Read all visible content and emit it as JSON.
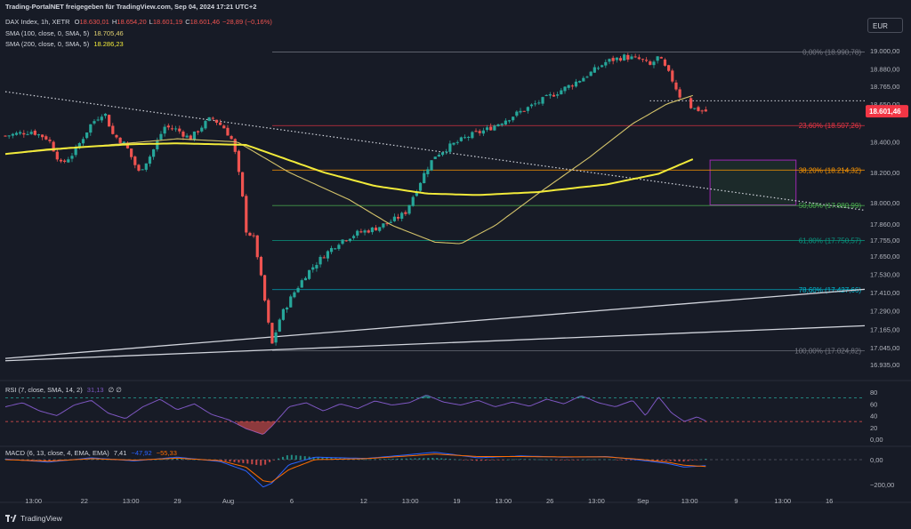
{
  "header": {
    "title": "Trading-PortalNET freigegeben für TradingView.com, Sep 04, 2024 17:21 UTC+2",
    "symbol": "DAX Index, 1h, XETR",
    "ohlc": [
      {
        "k": "O",
        "v": "18.630,01"
      },
      {
        "k": "H",
        "v": "18.654,20"
      },
      {
        "k": "L",
        "v": "18.601,19"
      },
      {
        "k": "C",
        "v": "18.601,46"
      },
      {
        "k": "",
        "v": "−28,89 (−0,16%)"
      }
    ],
    "sma100_label": "SMA (100, close, 0, SMA, 5)",
    "sma100_value": "18.705,46",
    "sma200_label": "SMA (200, close, 0, SMA, 5)",
    "sma200_value": "18.286,23"
  },
  "currency": "EUR",
  "logo": "TradingView",
  "colors": {
    "background": "#171b26",
    "up": "#26a69a",
    "down": "#ef5350",
    "sma100": "#d4c36a",
    "sma200": "#f1ea3a",
    "rsi": "#7e57c2",
    "macd": "#2962ff",
    "signal": "#ff6d00",
    "price_badge": "#f23645"
  },
  "chart_data": {
    "type": "candlestick",
    "x_labels": [
      "13:00",
      "22",
      "13:00",
      "29",
      "Aug",
      "6",
      "12",
      "13:00",
      "19",
      "13:00",
      "26",
      "13:00",
      "Sep",
      "13:00",
      "9",
      "13:00",
      "16"
    ],
    "y_ticks": [
      "19.000,00",
      "18.880,00",
      "18.765,00",
      "18.650,00",
      "18.400,00",
      "18.200,00",
      "18.000,00",
      "17.860,00",
      "17.755,00",
      "17.650,00",
      "17.530,00",
      "17.410,00",
      "17.290,00",
      "17.165,00",
      "17.045,00",
      "16.935,00"
    ],
    "y_tick_values": [
      19000,
      18880,
      18765,
      18650,
      18400,
      18200,
      18000,
      17860,
      17755,
      17650,
      17530,
      17410,
      17290,
      17165,
      17045,
      16935
    ],
    "last_price": "18.601,46",
    "last_price_value": 18601.46,
    "close_path": [
      [
        0,
        18440
      ],
      [
        0.03,
        18470
      ],
      [
        0.05,
        18420
      ],
      [
        0.065,
        18250
      ],
      [
        0.08,
        18330
      ],
      [
        0.1,
        18520
      ],
      [
        0.115,
        18600
      ],
      [
        0.125,
        18450
      ],
      [
        0.14,
        18380
      ],
      [
        0.155,
        18200
      ],
      [
        0.17,
        18320
      ],
      [
        0.185,
        18500
      ],
      [
        0.2,
        18480
      ],
      [
        0.215,
        18420
      ],
      [
        0.23,
        18510
      ],
      [
        0.24,
        18560
      ],
      [
        0.255,
        18490
      ],
      [
        0.265,
        18400
      ],
      [
        0.275,
        18080
      ],
      [
        0.28,
        17820
      ],
      [
        0.29,
        17760
      ],
      [
        0.3,
        17420
      ],
      [
        0.31,
        17060
      ],
      [
        0.32,
        17250
      ],
      [
        0.335,
        17400
      ],
      [
        0.35,
        17530
      ],
      [
        0.37,
        17650
      ],
      [
        0.39,
        17750
      ],
      [
        0.41,
        17800
      ],
      [
        0.43,
        17830
      ],
      [
        0.45,
        17880
      ],
      [
        0.465,
        17930
      ],
      [
        0.475,
        18050
      ],
      [
        0.49,
        18220
      ],
      [
        0.5,
        18310
      ],
      [
        0.52,
        18380
      ],
      [
        0.54,
        18440
      ],
      [
        0.56,
        18480
      ],
      [
        0.58,
        18540
      ],
      [
        0.6,
        18600
      ],
      [
        0.62,
        18660
      ],
      [
        0.64,
        18720
      ],
      [
        0.66,
        18780
      ],
      [
        0.68,
        18850
      ],
      [
        0.7,
        18930
      ],
      [
        0.72,
        18960
      ],
      [
        0.74,
        18940
      ],
      [
        0.75,
        18900
      ],
      [
        0.76,
        18960
      ],
      [
        0.775,
        18820
      ],
      [
        0.785,
        18700
      ],
      [
        0.8,
        18620
      ],
      [
        0.815,
        18601
      ]
    ],
    "sma100_path": [
      [
        0,
        18320
      ],
      [
        0.1,
        18370
      ],
      [
        0.2,
        18420
      ],
      [
        0.27,
        18400
      ],
      [
        0.33,
        18200
      ],
      [
        0.4,
        18020
      ],
      [
        0.45,
        17850
      ],
      [
        0.5,
        17740
      ],
      [
        0.53,
        17730
      ],
      [
        0.57,
        17850
      ],
      [
        0.62,
        18060
      ],
      [
        0.68,
        18300
      ],
      [
        0.73,
        18520
      ],
      [
        0.77,
        18650
      ],
      [
        0.8,
        18705
      ]
    ],
    "sma200_path": [
      [
        0,
        18320
      ],
      [
        0.05,
        18350
      ],
      [
        0.1,
        18370
      ],
      [
        0.15,
        18385
      ],
      [
        0.2,
        18390
      ],
      [
        0.28,
        18380
      ],
      [
        0.32,
        18300
      ],
      [
        0.37,
        18200
      ],
      [
        0.43,
        18110
      ],
      [
        0.49,
        18060
      ],
      [
        0.55,
        18050
      ],
      [
        0.62,
        18070
      ],
      [
        0.7,
        18120
      ],
      [
        0.76,
        18190
      ],
      [
        0.8,
        18286
      ]
    ],
    "fib_levels": [
      {
        "label": "0,00% (18.990,78)",
        "value": 18990.78,
        "color": "#787b86"
      },
      {
        "label": "23,60% (18.507,26)",
        "value": 18507.26,
        "color": "#f23645"
      },
      {
        "label": "38,20% (18.214,32)",
        "value": 18214.32,
        "color": "#ff9800"
      },
      {
        "label": "50,00% (17.980,99)",
        "value": 17980.99,
        "color": "#4caf50"
      },
      {
        "label": "61,80% (17.750,57)",
        "value": 17750.57,
        "color": "#089981"
      },
      {
        "label": "78,60% (17.427,66)",
        "value": 17427.66,
        "color": "#00bcd4"
      },
      {
        "label": "100,00% (17.024,82)",
        "value": 17024.82,
        "color": "#787b86"
      }
    ],
    "zone": {
      "x_start": 0.82,
      "x_end": 0.92,
      "y_top": 18280,
      "y_bottom": 17985
    },
    "trendlines": [
      {
        "from": [
          0,
          18730
        ],
        "to": [
          1,
          17950
        ],
        "style": "dotted"
      },
      {
        "from": [
          0,
          16975
        ],
        "to": [
          1,
          17430
        ],
        "style": "solid"
      },
      {
        "from": [
          0,
          16960
        ],
        "to": [
          1,
          17190
        ],
        "style": "solid"
      }
    ],
    "resistance_dotted": {
      "value": 18670
    },
    "rsi": {
      "label": "RSI (7, close, SMA, 14, 2)",
      "value": "31,13",
      "extra": "∅ ∅",
      "ticks": [
        "80",
        "60",
        "40",
        "20",
        "0,00"
      ],
      "tick_values": [
        80,
        60,
        40,
        20,
        0
      ],
      "bands": [
        70,
        30
      ],
      "path": [
        [
          0,
          55
        ],
        [
          0.02,
          62
        ],
        [
          0.04,
          48
        ],
        [
          0.06,
          40
        ],
        [
          0.08,
          58
        ],
        [
          0.1,
          66
        ],
        [
          0.12,
          44
        ],
        [
          0.14,
          35
        ],
        [
          0.16,
          55
        ],
        [
          0.18,
          68
        ],
        [
          0.2,
          50
        ],
        [
          0.22,
          60
        ],
        [
          0.24,
          42
        ],
        [
          0.26,
          33
        ],
        [
          0.28,
          18
        ],
        [
          0.3,
          8
        ],
        [
          0.31,
          22
        ],
        [
          0.33,
          55
        ],
        [
          0.35,
          62
        ],
        [
          0.37,
          48
        ],
        [
          0.39,
          60
        ],
        [
          0.41,
          52
        ],
        [
          0.43,
          65
        ],
        [
          0.45,
          58
        ],
        [
          0.47,
          62
        ],
        [
          0.49,
          75
        ],
        [
          0.51,
          63
        ],
        [
          0.53,
          58
        ],
        [
          0.55,
          66
        ],
        [
          0.57,
          55
        ],
        [
          0.59,
          63
        ],
        [
          0.61,
          56
        ],
        [
          0.63,
          68
        ],
        [
          0.65,
          60
        ],
        [
          0.67,
          74
        ],
        [
          0.69,
          62
        ],
        [
          0.71,
          55
        ],
        [
          0.73,
          66
        ],
        [
          0.745,
          40
        ],
        [
          0.76,
          72
        ],
        [
          0.775,
          45
        ],
        [
          0.79,
          30
        ],
        [
          0.805,
          38
        ],
        [
          0.815,
          31
        ]
      ]
    },
    "macd": {
      "label": "MACD (6, 13, close, 4, EMA, EMA)",
      "values": [
        "7,41",
        "−47,92",
        "−55,33"
      ],
      "ticks": [
        "0,00",
        "−200,00"
      ],
      "tick_values": [
        0,
        -200
      ],
      "macd_path": [
        [
          0,
          5
        ],
        [
          0.05,
          -20
        ],
        [
          0.1,
          15
        ],
        [
          0.15,
          -10
        ],
        [
          0.2,
          20
        ],
        [
          0.25,
          -15
        ],
        [
          0.28,
          -90
        ],
        [
          0.3,
          -220
        ],
        [
          0.31,
          -190
        ],
        [
          0.33,
          -40
        ],
        [
          0.36,
          20
        ],
        [
          0.42,
          10
        ],
        [
          0.47,
          40
        ],
        [
          0.5,
          60
        ],
        [
          0.55,
          15
        ],
        [
          0.6,
          30
        ],
        [
          0.65,
          20
        ],
        [
          0.7,
          25
        ],
        [
          0.74,
          -5
        ],
        [
          0.77,
          -30
        ],
        [
          0.79,
          -60
        ],
        [
          0.815,
          -48
        ]
      ],
      "signal_path": [
        [
          0,
          0
        ],
        [
          0.05,
          -12
        ],
        [
          0.1,
          8
        ],
        [
          0.15,
          -4
        ],
        [
          0.2,
          12
        ],
        [
          0.25,
          -8
        ],
        [
          0.28,
          -60
        ],
        [
          0.3,
          -170
        ],
        [
          0.31,
          -180
        ],
        [
          0.33,
          -80
        ],
        [
          0.36,
          0
        ],
        [
          0.42,
          8
        ],
        [
          0.47,
          30
        ],
        [
          0.5,
          45
        ],
        [
          0.55,
          25
        ],
        [
          0.6,
          25
        ],
        [
          0.65,
          22
        ],
        [
          0.7,
          22
        ],
        [
          0.74,
          2
        ],
        [
          0.77,
          -20
        ],
        [
          0.79,
          -45
        ],
        [
          0.815,
          -55
        ]
      ]
    }
  }
}
